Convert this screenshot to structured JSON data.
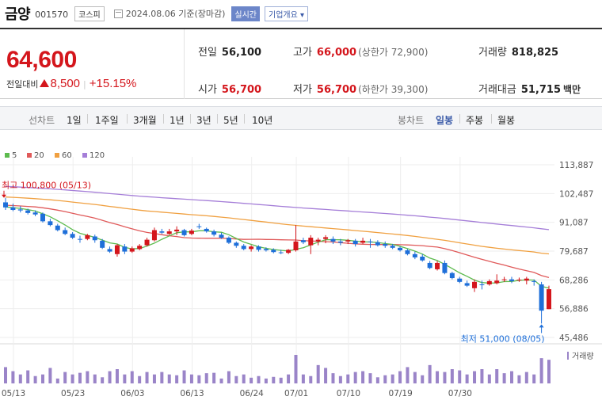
{
  "header": {
    "stock_name": "금양",
    "stock_code": "001570",
    "market_badge": "코스피",
    "date_text": "2024.08.06 기준(장마감)",
    "realtime_button": "실시간",
    "company_info_button": "기업개요",
    "company_info_arrow": "▾"
  },
  "quote": {
    "current_price": "64,600",
    "change_label": "전일대비",
    "change_value": "8,500",
    "change_sep": "|",
    "change_percent": "+15.15%",
    "prev_close_label": "전일",
    "prev_close": "56,100",
    "high_label": "고가",
    "high": "66,000",
    "upper_limit": "(상한가 72,900)",
    "volume_label": "거래량",
    "volume": "818,825",
    "open_label": "시가",
    "open": "56,700",
    "low_label": "저가",
    "low": "56,700",
    "lower_limit": "(하한가 39,300)",
    "trade_value_label": "거래대금",
    "trade_value": "51,715",
    "trade_value_unit": "백만",
    "up_color": "#d4161c"
  },
  "toolbar": {
    "line_chart_label": "선차트",
    "line_options": [
      "1일",
      "1주일",
      "3개월",
      "1년",
      "3년",
      "5년",
      "10년"
    ],
    "candle_chart_label": "봉차트",
    "candle_options": [
      "일봉",
      "주봉",
      "월봉"
    ],
    "selected": "일봉"
  },
  "chart_data": {
    "type": "candlestick",
    "legend": [
      {
        "name": "5",
        "color": "#5dbb4e"
      },
      {
        "name": "20",
        "color": "#e05a5a"
      },
      {
        "name": "60",
        "color": "#f0a040"
      },
      {
        "name": "120",
        "color": "#a57ed8"
      }
    ],
    "y_ticks": [
      "113,887",
      "102,487",
      "91,087",
      "79,687",
      "68,286",
      "56,886",
      "45,486"
    ],
    "ylim": [
      45486,
      113887
    ],
    "x_ticks": [
      "05/13",
      "05/23",
      "06/03",
      "06/13",
      "06/24",
      "07/01",
      "07/10",
      "07/19",
      "07/30"
    ],
    "annotation_high": "최고 100,800 (05/13)",
    "annotation_low": "최저 51,000 (08/05)",
    "volume_label": "거래량",
    "up_color": "#d4161c",
    "down_color": "#1e6fd9",
    "candles": [
      [
        99000,
        100800,
        96000,
        97000
      ],
      [
        97000,
        98500,
        95500,
        96000
      ],
      [
        96200,
        97500,
        95000,
        95800
      ],
      [
        95800,
        96500,
        94200,
        94800
      ],
      [
        95000,
        95800,
        93500,
        94200
      ],
      [
        94500,
        95000,
        91000,
        91500
      ],
      [
        91500,
        92500,
        89500,
        90000
      ],
      [
        89800,
        90500,
        87500,
        88000
      ],
      [
        88000,
        89000,
        86000,
        86500
      ],
      [
        86500,
        87200,
        84500,
        85000
      ],
      [
        84500,
        85800,
        83000,
        84200
      ],
      [
        84500,
        86500,
        84000,
        86000
      ],
      [
        85500,
        86200,
        83000,
        84000
      ],
      [
        83800,
        84500,
        80500,
        81000
      ],
      [
        80500,
        81500,
        79000,
        79500
      ],
      [
        78500,
        82500,
        77500,
        82000
      ],
      [
        81500,
        82500,
        78500,
        79500
      ],
      [
        79500,
        81500,
        79000,
        80800
      ],
      [
        80500,
        82500,
        80000,
        81800
      ],
      [
        82000,
        85000,
        81500,
        84200
      ],
      [
        84000,
        89000,
        83500,
        88000
      ],
      [
        87500,
        88500,
        86500,
        87000
      ],
      [
        86500,
        88500,
        86000,
        87500
      ],
      [
        87500,
        89500,
        86000,
        88200
      ],
      [
        88000,
        88500,
        85500,
        86000
      ],
      [
        86500,
        88500,
        86000,
        87800
      ],
      [
        89500,
        90500,
        88500,
        89200
      ],
      [
        88500,
        89000,
        87000,
        87500
      ],
      [
        87500,
        88200,
        85500,
        86200
      ],
      [
        86200,
        87000,
        84500,
        85000
      ],
      [
        85000,
        85500,
        82500,
        83000
      ],
      [
        83000,
        83500,
        81000,
        81800
      ],
      [
        81800,
        82500,
        80000,
        80500
      ],
      [
        80500,
        82000,
        79500,
        81500
      ],
      [
        81500,
        82000,
        79500,
        80200
      ],
      [
        80500,
        81200,
        79500,
        80000
      ],
      [
        80200,
        80800,
        78800,
        79300
      ],
      [
        79200,
        80200,
        78500,
        79000
      ],
      [
        79000,
        80500,
        78500,
        80200
      ],
      [
        80000,
        90000,
        79500,
        83500
      ],
      [
        84000,
        85000,
        82500,
        83200
      ],
      [
        82000,
        86000,
        78500,
        85000
      ],
      [
        83500,
        85000,
        82000,
        84200
      ],
      [
        84500,
        86000,
        82800,
        85200
      ],
      [
        84500,
        85500,
        82500,
        83500
      ],
      [
        83500,
        84500,
        82000,
        83000
      ],
      [
        83500,
        84500,
        82500,
        84000
      ],
      [
        83800,
        84500,
        81500,
        82500
      ],
      [
        83000,
        85000,
        82500,
        83800
      ],
      [
        83500,
        84500,
        81000,
        83200
      ],
      [
        83200,
        84000,
        81500,
        82000
      ],
      [
        82500,
        83500,
        81000,
        81800
      ],
      [
        81800,
        82500,
        80500,
        81000
      ],
      [
        81000,
        81500,
        79500,
        80000
      ],
      [
        80000,
        80500,
        78000,
        78500
      ],
      [
        78500,
        79500,
        76500,
        77200
      ],
      [
        77500,
        78500,
        75500,
        76000
      ],
      [
        75000,
        75800,
        72500,
        73000
      ],
      [
        72500,
        75800,
        72000,
        75000
      ],
      [
        75000,
        76000,
        70500,
        71000
      ],
      [
        71000,
        71500,
        68500,
        69000
      ],
      [
        68800,
        69500,
        67000,
        67500
      ],
      [
        67000,
        68000,
        65500,
        66000
      ],
      [
        65000,
        68500,
        63500,
        67500
      ],
      [
        66500,
        68000,
        64500,
        66200
      ],
      [
        66500,
        68500,
        66000,
        67800
      ],
      [
        67000,
        70500,
        66500,
        68000
      ],
      [
        68200,
        69500,
        67500,
        68500
      ],
      [
        68500,
        69500,
        67000,
        67800
      ],
      [
        68200,
        69200,
        67500,
        68400
      ],
      [
        68000,
        69500,
        66500,
        68800
      ],
      [
        67800,
        68500,
        66000,
        67500
      ],
      [
        66500,
        67500,
        51000,
        56100
      ],
      [
        56700,
        66000,
        56700,
        64600
      ]
    ],
    "volumes": [
      40,
      30,
      22,
      32,
      18,
      22,
      38,
      12,
      28,
      22,
      26,
      30,
      22,
      15,
      30,
      35,
      22,
      30,
      18,
      28,
      22,
      28,
      22,
      20,
      32,
      22,
      20,
      25,
      26,
      12,
      30,
      18,
      22,
      14,
      18,
      12,
      16,
      14,
      22,
      70,
      22,
      18,
      45,
      38,
      25,
      18,
      22,
      28,
      30,
      25,
      15,
      20,
      22,
      30,
      40,
      28,
      20,
      45,
      30,
      28,
      35,
      32,
      22,
      30,
      35,
      22,
      35,
      25,
      30,
      20,
      28,
      22,
      62,
      58
    ]
  }
}
